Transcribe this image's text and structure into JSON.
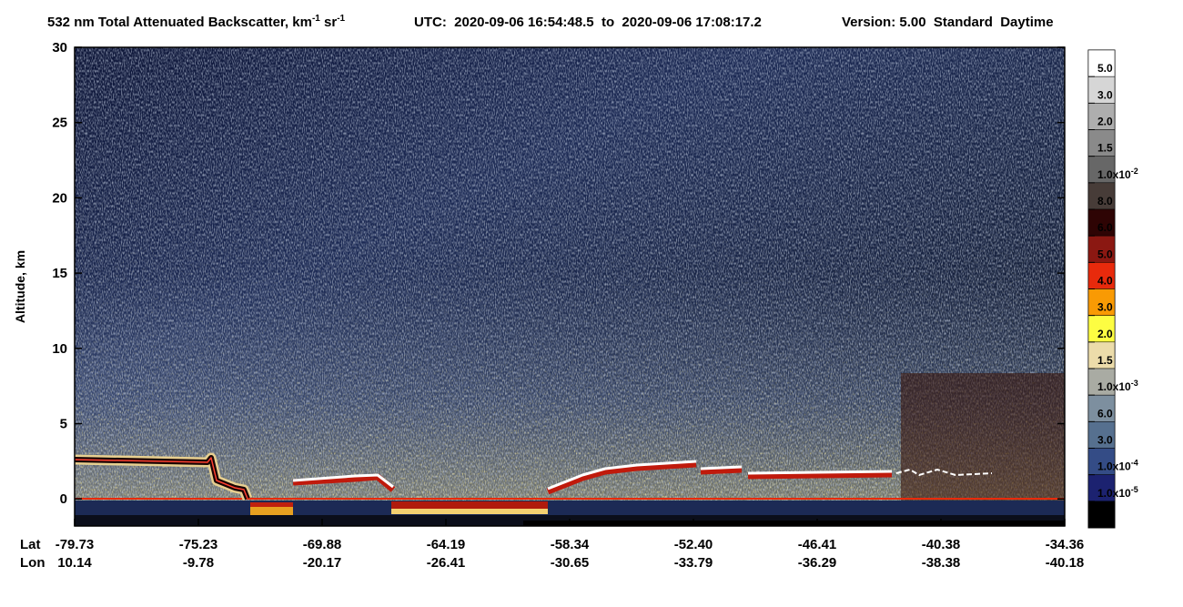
{
  "chart_data": {
    "type": "heatmap",
    "title": {
      "text": "532 nm Total Attenuated Backscatter, km",
      "sup1": "-1",
      "unit2": " sr",
      "sup2": "-1"
    },
    "subtitle": "UTC:  2020-09-06 16:54:48.5  to  2020-09-06 17:08:17.2",
    "version": "Version: 5.00  Standard  Daytime",
    "ylabel": "Altitude, km",
    "ylim": [
      -1.8,
      30
    ],
    "yticks": [
      0,
      5,
      10,
      15,
      20,
      25,
      30
    ],
    "x_row_labels": [
      "Lat",
      "Lon"
    ],
    "lat": [
      "-79.73",
      "-75.23",
      "-69.88",
      "-64.19",
      "-58.34",
      "-52.40",
      "-46.41",
      "-40.38",
      "-34.36"
    ],
    "lon": [
      "10.14",
      "-9.78",
      "-20.17",
      "-26.41",
      "-30.65",
      "-33.79",
      "-36.29",
      "-38.38",
      "-40.18"
    ],
    "colorbar": {
      "colors": [
        "#ffffff",
        "#d6d6d6",
        "#aeaeae",
        "#8a8a8a",
        "#676767",
        "#473c38",
        "#2e0404",
        "#8b1812",
        "#e82a0c",
        "#f99a04",
        "#fdfd42",
        "#ecdcaa",
        "#a9aba3",
        "#7d8f9f",
        "#56708f",
        "#344c86",
        "#1c2270",
        "#000000"
      ],
      "labels": [
        {
          "base": "5.0"
        },
        {
          "base": "3.0"
        },
        {
          "base": "2.0"
        },
        {
          "base": "1.5"
        },
        {
          "base": "1.0x10",
          "sup": "-2"
        },
        {
          "base": "8.0"
        },
        {
          "base": "6.0"
        },
        {
          "base": "5.0"
        },
        {
          "base": "4.0"
        },
        {
          "base": "3.0"
        },
        {
          "base": "2.0"
        },
        {
          "base": "1.5"
        },
        {
          "base": "1.0x10",
          "sup": "-3"
        },
        {
          "base": "6.0"
        },
        {
          "base": "3.0"
        },
        {
          "base": "1.0x10",
          "sup": "-4"
        },
        {
          "base": "1.0x10",
          "sup": "-5"
        }
      ]
    }
  }
}
